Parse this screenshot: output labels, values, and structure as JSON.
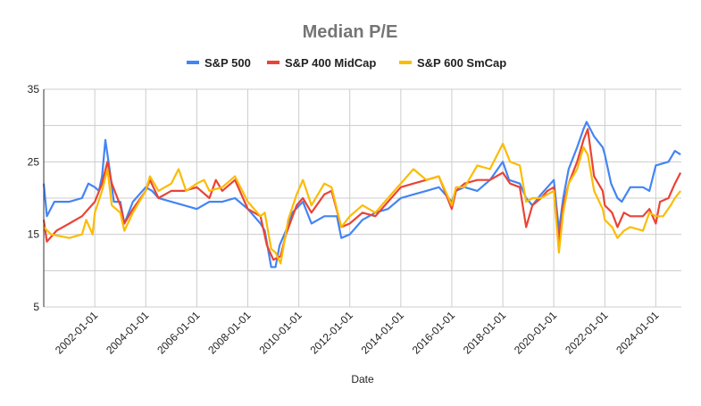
{
  "chart_data": {
    "type": "line",
    "title": "Median P/E",
    "xlabel": "Date",
    "ylabel": "",
    "xlim": [
      "2000-01-01",
      "2025-01-01"
    ],
    "ylim": [
      5,
      35
    ],
    "y_ticks": [
      "35",
      "25",
      "15",
      "5"
    ],
    "y_grid_step": 5,
    "x_ticks": [
      "2002-01-01",
      "2004-01-01",
      "2006-01-01",
      "2008-01-01",
      "2010-01-01",
      "2012-01-01",
      "2014-01-01",
      "2016-01-01",
      "2018-01-01",
      "2020-01-01",
      "2022-01-01",
      "2024-01-01"
    ],
    "grid": true,
    "legend": "top",
    "series": [
      {
        "name": "S&P 500",
        "color": "#4285f4",
        "points": [
          [
            "2000-01-01",
            22
          ],
          [
            "2000-02-15",
            17.5
          ],
          [
            "2000-06-01",
            19.5
          ],
          [
            "2001-01-01",
            19.5
          ],
          [
            "2001-07-01",
            20
          ],
          [
            "2001-10-01",
            22
          ],
          [
            "2002-01-01",
            21.5
          ],
          [
            "2002-03-01",
            21
          ],
          [
            "2002-04-15",
            23
          ],
          [
            "2002-06-01",
            28
          ],
          [
            "2002-08-01",
            24
          ],
          [
            "2002-10-01",
            19.5
          ],
          [
            "2003-01-01",
            19.5
          ],
          [
            "2003-03-01",
            16.5
          ],
          [
            "2003-07-01",
            19.5
          ],
          [
            "2004-01-01",
            21.5
          ],
          [
            "2004-04-01",
            21
          ],
          [
            "2004-07-01",
            20
          ],
          [
            "2005-01-01",
            19.5
          ],
          [
            "2005-07-01",
            19
          ],
          [
            "2006-01-01",
            18.5
          ],
          [
            "2006-07-01",
            19.5
          ],
          [
            "2007-01-01",
            19.5
          ],
          [
            "2007-07-01",
            20
          ],
          [
            "2008-01-01",
            18.5
          ],
          [
            "2008-07-01",
            16.5
          ],
          [
            "2008-09-01",
            15.5
          ],
          [
            "2008-12-01",
            10.5
          ],
          [
            "2009-02-01",
            10.5
          ],
          [
            "2009-04-01",
            13.5
          ],
          [
            "2009-07-01",
            15.5
          ],
          [
            "2009-10-01",
            18
          ],
          [
            "2010-03-01",
            19.5
          ],
          [
            "2010-07-01",
            16.5
          ],
          [
            "2010-10-01",
            17
          ],
          [
            "2011-01-01",
            17.5
          ],
          [
            "2011-07-01",
            17.5
          ],
          [
            "2011-09-01",
            14.5
          ],
          [
            "2012-01-01",
            15
          ],
          [
            "2012-07-01",
            17
          ],
          [
            "2013-01-01",
            18
          ],
          [
            "2013-07-01",
            18.5
          ],
          [
            "2014-01-01",
            20
          ],
          [
            "2014-07-01",
            20.5
          ],
          [
            "2015-01-01",
            21
          ],
          [
            "2015-07-01",
            21.5
          ],
          [
            "2016-01-01",
            19.5
          ],
          [
            "2016-03-01",
            21
          ],
          [
            "2016-07-01",
            21.5
          ],
          [
            "2017-01-01",
            21
          ],
          [
            "2017-07-01",
            22.5
          ],
          [
            "2018-01-01",
            25
          ],
          [
            "2018-04-01",
            22.5
          ],
          [
            "2018-09-01",
            22
          ],
          [
            "2018-12-01",
            20
          ],
          [
            "2019-03-01",
            19
          ],
          [
            "2019-07-01",
            20.5
          ],
          [
            "2019-10-01",
            21.5
          ],
          [
            "2020-01-01",
            22.5
          ],
          [
            "2020-03-15",
            15.5
          ],
          [
            "2020-05-15",
            20
          ],
          [
            "2020-08-01",
            24
          ],
          [
            "2020-12-01",
            27
          ],
          [
            "2021-03-01",
            29.5
          ],
          [
            "2021-04-15",
            30.5
          ],
          [
            "2021-08-01",
            28.5
          ],
          [
            "2021-12-01",
            27
          ],
          [
            "2022-01-01",
            26
          ],
          [
            "2022-04-01",
            22
          ],
          [
            "2022-07-01",
            20
          ],
          [
            "2022-09-01",
            19.5
          ],
          [
            "2023-01-01",
            21.5
          ],
          [
            "2023-07-01",
            21.5
          ],
          [
            "2023-10-01",
            21
          ],
          [
            "2024-01-01",
            24.5
          ],
          [
            "2024-07-01",
            25
          ],
          [
            "2024-10-01",
            26.5
          ],
          [
            "2024-12-20",
            26
          ]
        ]
      },
      {
        "name": "S&P 400 MidCap",
        "color": "#ea4335",
        "points": [
          [
            "2000-01-01",
            17
          ],
          [
            "2000-02-15",
            14
          ],
          [
            "2000-07-01",
            15.5
          ],
          [
            "2001-01-01",
            16.5
          ],
          [
            "2001-07-01",
            17.5
          ],
          [
            "2002-01-01",
            19.5
          ],
          [
            "2002-04-15",
            22
          ],
          [
            "2002-07-01",
            25
          ],
          [
            "2002-09-01",
            22
          ],
          [
            "2003-01-01",
            19
          ],
          [
            "2003-03-01",
            16.5
          ],
          [
            "2003-07-01",
            18.5
          ],
          [
            "2004-01-01",
            21
          ],
          [
            "2004-03-01",
            22.5
          ],
          [
            "2004-07-01",
            20
          ],
          [
            "2005-01-01",
            21
          ],
          [
            "2005-07-01",
            21
          ],
          [
            "2006-01-01",
            21.5
          ],
          [
            "2006-07-01",
            20
          ],
          [
            "2006-10-01",
            22.5
          ],
          [
            "2007-01-01",
            21
          ],
          [
            "2007-07-01",
            22.5
          ],
          [
            "2008-01-01",
            18.5
          ],
          [
            "2008-07-01",
            17.5
          ],
          [
            "2008-10-01",
            13.5
          ],
          [
            "2009-01-01",
            11.5
          ],
          [
            "2009-04-15",
            12
          ],
          [
            "2009-07-01",
            15
          ],
          [
            "2009-12-01",
            19
          ],
          [
            "2010-03-01",
            20
          ],
          [
            "2010-07-01",
            18
          ],
          [
            "2011-01-01",
            20.5
          ],
          [
            "2011-04-15",
            21
          ],
          [
            "2011-09-01",
            16
          ],
          [
            "2012-01-01",
            16.5
          ],
          [
            "2012-07-01",
            18
          ],
          [
            "2013-01-01",
            17.5
          ],
          [
            "2013-07-01",
            19.5
          ],
          [
            "2014-01-01",
            21.5
          ],
          [
            "2014-07-01",
            22
          ],
          [
            "2015-01-01",
            22.5
          ],
          [
            "2015-07-01",
            23
          ],
          [
            "2016-01-01",
            18.5
          ],
          [
            "2016-03-01",
            21
          ],
          [
            "2016-07-01",
            22
          ],
          [
            "2017-01-01",
            22.5
          ],
          [
            "2017-07-01",
            22.5
          ],
          [
            "2018-01-01",
            23.5
          ],
          [
            "2018-04-15",
            22
          ],
          [
            "2018-09-01",
            21.5
          ],
          [
            "2018-12-01",
            16
          ],
          [
            "2019-03-01",
            19
          ],
          [
            "2019-07-01",
            20
          ],
          [
            "2019-10-01",
            21
          ],
          [
            "2020-01-01",
            21.5
          ],
          [
            "2020-03-15",
            14
          ],
          [
            "2020-05-15",
            19
          ],
          [
            "2020-08-01",
            22
          ],
          [
            "2020-12-01",
            25
          ],
          [
            "2021-03-01",
            28
          ],
          [
            "2021-05-01",
            29.5
          ],
          [
            "2021-08-01",
            23
          ],
          [
            "2021-12-01",
            21
          ],
          [
            "2022-01-01",
            19
          ],
          [
            "2022-04-15",
            18
          ],
          [
            "2022-07-01",
            16
          ],
          [
            "2022-10-01",
            18
          ],
          [
            "2023-01-01",
            17.5
          ],
          [
            "2023-07-01",
            17.5
          ],
          [
            "2023-10-01",
            18.5
          ],
          [
            "2024-01-01",
            16.5
          ],
          [
            "2024-03-01",
            19.5
          ],
          [
            "2024-07-01",
            20
          ],
          [
            "2024-10-01",
            22
          ],
          [
            "2024-12-20",
            23.5
          ]
        ]
      },
      {
        "name": "S&P 600 SmCap",
        "color": "#fbbc04",
        "points": [
          [
            "2000-01-01",
            16
          ],
          [
            "2000-04-15",
            15
          ],
          [
            "2001-01-01",
            14.5
          ],
          [
            "2001-07-01",
            15
          ],
          [
            "2001-09-01",
            17
          ],
          [
            "2001-12-01",
            15
          ],
          [
            "2002-01-01",
            18
          ],
          [
            "2002-04-15",
            21
          ],
          [
            "2002-07-01",
            24
          ],
          [
            "2002-09-01",
            19
          ],
          [
            "2003-01-01",
            18
          ],
          [
            "2003-03-01",
            15.5
          ],
          [
            "2003-07-01",
            18
          ],
          [
            "2004-01-01",
            21
          ],
          [
            "2004-03-01",
            23
          ],
          [
            "2004-07-01",
            21
          ],
          [
            "2005-01-01",
            22
          ],
          [
            "2005-04-15",
            24
          ],
          [
            "2005-08-01",
            21
          ],
          [
            "2006-01-01",
            22
          ],
          [
            "2006-04-15",
            22.5
          ],
          [
            "2006-07-01",
            21
          ],
          [
            "2007-01-01",
            21.5
          ],
          [
            "2007-07-01",
            23
          ],
          [
            "2008-01-01",
            19.5
          ],
          [
            "2008-07-01",
            17.5
          ],
          [
            "2008-09-01",
            18
          ],
          [
            "2008-12-01",
            13
          ],
          [
            "2009-02-01",
            12.5
          ],
          [
            "2009-04-15",
            11
          ],
          [
            "2009-08-01",
            17
          ],
          [
            "2009-12-01",
            20.5
          ],
          [
            "2010-03-01",
            22.5
          ],
          [
            "2010-07-01",
            19
          ],
          [
            "2011-01-01",
            22
          ],
          [
            "2011-04-15",
            21.5
          ],
          [
            "2011-09-01",
            16
          ],
          [
            "2012-01-01",
            17.5
          ],
          [
            "2012-07-01",
            19
          ],
          [
            "2013-01-01",
            18
          ],
          [
            "2013-07-01",
            20
          ],
          [
            "2014-01-01",
            22
          ],
          [
            "2014-07-01",
            24
          ],
          [
            "2015-01-01",
            22.5
          ],
          [
            "2015-07-01",
            23
          ],
          [
            "2016-01-01",
            19
          ],
          [
            "2016-03-01",
            21.5
          ],
          [
            "2016-07-01",
            21.5
          ],
          [
            "2017-01-01",
            24.5
          ],
          [
            "2017-07-01",
            24
          ],
          [
            "2018-01-01",
            27.5
          ],
          [
            "2018-04-15",
            25
          ],
          [
            "2018-09-01",
            24.5
          ],
          [
            "2018-12-01",
            19.5
          ],
          [
            "2019-03-01",
            20
          ],
          [
            "2019-07-01",
            20
          ],
          [
            "2019-10-01",
            20.5
          ],
          [
            "2020-01-01",
            21
          ],
          [
            "2020-03-15",
            12.5
          ],
          [
            "2020-05-15",
            18
          ],
          [
            "2020-08-01",
            22
          ],
          [
            "2020-12-01",
            24
          ],
          [
            "2021-03-01",
            27
          ],
          [
            "2021-05-01",
            26
          ],
          [
            "2021-08-01",
            21
          ],
          [
            "2021-12-01",
            18.5
          ],
          [
            "2022-01-01",
            17
          ],
          [
            "2022-04-15",
            16
          ],
          [
            "2022-07-01",
            14.5
          ],
          [
            "2022-10-01",
            15.5
          ],
          [
            "2023-01-01",
            16
          ],
          [
            "2023-07-01",
            15.5
          ],
          [
            "2023-10-01",
            18
          ],
          [
            "2024-01-01",
            17.5
          ],
          [
            "2024-04-15",
            17.5
          ],
          [
            "2024-08-01",
            19
          ],
          [
            "2024-10-01",
            20
          ],
          [
            "2024-12-20",
            21
          ]
        ]
      }
    ]
  }
}
